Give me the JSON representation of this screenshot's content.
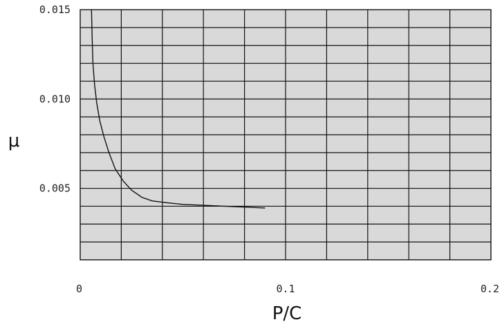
{
  "chart_data": {
    "type": "line",
    "title": "",
    "xlabel": "P/C",
    "ylabel": "μ",
    "xlim": [
      0,
      0.2
    ],
    "ylim": [
      0.001,
      0.015
    ],
    "grid": true,
    "x_ticks": [
      0,
      0.1,
      0.2
    ],
    "x_tick_labels": [
      "0",
      "0.1",
      "0.2"
    ],
    "y_ticks": [
      0.005,
      0.01,
      0.015
    ],
    "y_tick_labels": [
      "0.005",
      "0.010",
      "0.015"
    ],
    "x_minor_step": 0.02,
    "y_minor_step": 0.001,
    "series": [
      {
        "x": [
          0.0055,
          0.0058,
          0.0062,
          0.007,
          0.008,
          0.0095,
          0.0115,
          0.014,
          0.017,
          0.021,
          0.025,
          0.03,
          0.035,
          0.042,
          0.05,
          0.06,
          0.07,
          0.08,
          0.09
        ],
        "y": [
          0.015,
          0.0135,
          0.012,
          0.0108,
          0.0098,
          0.0088,
          0.0079,
          0.007,
          0.0061,
          0.0054,
          0.0049,
          0.0045,
          0.0043,
          0.0042,
          0.0041,
          0.00405,
          0.004,
          0.00395,
          0.0039
        ]
      }
    ]
  }
}
